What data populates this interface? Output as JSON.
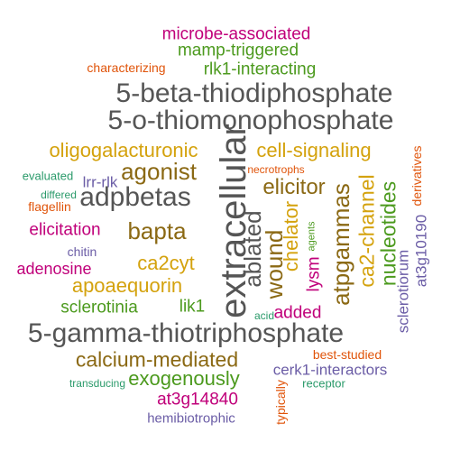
{
  "words": [
    {
      "text": "microbe-associated",
      "color": "#c0007a",
      "vertical": false
    },
    {
      "text": "mamp-triggered",
      "color": "#4c9a1e",
      "vertical": false
    },
    {
      "text": "characterizing",
      "color": "#e0540a",
      "vertical": false
    },
    {
      "text": "rlk1-interacting",
      "color": "#4c9a1e",
      "vertical": false
    },
    {
      "text": "5-beta-thiodiphosphate",
      "color": "#555555",
      "vertical": false
    },
    {
      "text": "5-o-thiomonophosphate",
      "color": "#555555",
      "vertical": false
    },
    {
      "text": "oligogalacturonic",
      "color": "#d4a20d",
      "vertical": false
    },
    {
      "text": "extracellular",
      "color": "#555555",
      "vertical": true
    },
    {
      "text": "cell-signaling",
      "color": "#d4a20d",
      "vertical": false
    },
    {
      "text": "derivatives",
      "color": "#e0540a",
      "vertical": true
    },
    {
      "text": "agonist",
      "color": "#8b6914",
      "vertical": false
    },
    {
      "text": "necrotrophs",
      "color": "#e0540a",
      "vertical": false
    },
    {
      "text": "evaluated",
      "color": "#2a9a6a",
      "vertical": false
    },
    {
      "text": "lrr-rlk",
      "color": "#6b5da6",
      "vertical": false
    },
    {
      "text": "elicitor",
      "color": "#8b6914",
      "vertical": false
    },
    {
      "text": "atpgammas",
      "color": "#8b6914",
      "vertical": true
    },
    {
      "text": "ca2-channel",
      "color": "#d4a20d",
      "vertical": true
    },
    {
      "text": "nucleotides",
      "color": "#4c9a1e",
      "vertical": true
    },
    {
      "text": "at3g10190",
      "color": "#6b5da6",
      "vertical": true
    },
    {
      "text": "differed",
      "color": "#2a9a6a",
      "vertical": false
    },
    {
      "text": "adpbetas",
      "color": "#555555",
      "vertical": false
    },
    {
      "text": "flagellin",
      "color": "#e0540a",
      "vertical": false
    },
    {
      "text": "ablated",
      "color": "#555555",
      "vertical": true
    },
    {
      "text": "wound",
      "color": "#8b6914",
      "vertical": true
    },
    {
      "text": "chelator",
      "color": "#d4a20d",
      "vertical": true
    },
    {
      "text": "agents",
      "color": "#4c9a1e",
      "vertical": true
    },
    {
      "text": "elicitation",
      "color": "#c0007a",
      "vertical": false
    },
    {
      "text": "bapta",
      "color": "#8b6914",
      "vertical": false
    },
    {
      "text": "chitin",
      "color": "#6b5da6",
      "vertical": false
    },
    {
      "text": "ca2cyt",
      "color": "#d4a20d",
      "vertical": false
    },
    {
      "text": "lysm",
      "color": "#c0007a",
      "vertical": true
    },
    {
      "text": "adenosine",
      "color": "#c0007a",
      "vertical": false
    },
    {
      "text": "sclerotiorum",
      "color": "#6b5da6",
      "vertical": true
    },
    {
      "text": "apoaequorin",
      "color": "#d4a20d",
      "vertical": false
    },
    {
      "text": "sclerotinia",
      "color": "#4c9a1e",
      "vertical": false
    },
    {
      "text": "lik1",
      "color": "#4c9a1e",
      "vertical": false
    },
    {
      "text": "acid",
      "color": "#2a9a6a",
      "vertical": false
    },
    {
      "text": "added",
      "color": "#c0007a",
      "vertical": false
    },
    {
      "text": "5-gamma-thiotriphosphate",
      "color": "#555555",
      "vertical": false
    },
    {
      "text": "calcium-mediated",
      "color": "#8b6914",
      "vertical": false
    },
    {
      "text": "best-studied",
      "color": "#e0540a",
      "vertical": false
    },
    {
      "text": "cerk1-interactors",
      "color": "#6b5da6",
      "vertical": false
    },
    {
      "text": "exogenously",
      "color": "#4c9a1e",
      "vertical": false
    },
    {
      "text": "transducing",
      "color": "#2a9a6a",
      "vertical": false
    },
    {
      "text": "receptor",
      "color": "#2a9a6a",
      "vertical": false
    },
    {
      "text": "at3g14840",
      "color": "#c0007a",
      "vertical": false
    },
    {
      "text": "typically",
      "color": "#e0540a",
      "vertical": true
    },
    {
      "text": "hemibiotrophic",
      "color": "#6b5da6",
      "vertical": false
    }
  ]
}
